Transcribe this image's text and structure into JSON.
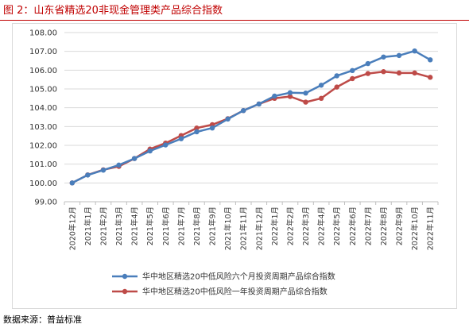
{
  "caption": "图 2：山东省精选20非现金管理类产品综合指数",
  "source": "数据来源：普益标准",
  "chart_data": {
    "type": "line",
    "categories": [
      "2020年12月",
      "2021年1月",
      "2021年2月",
      "2021年3月",
      "2021年4月",
      "2021年5月",
      "2021年6月",
      "2021年7月",
      "2021年8月",
      "2021年9月",
      "2021年10月",
      "2021年11月",
      "2021年12月",
      "2022年1月",
      "2022年2月",
      "2022年3月",
      "2022年4月",
      "2022年5月",
      "2022年6月",
      "2022年7月",
      "2022年8月",
      "2022年9月",
      "2022年10月",
      "2022年11月"
    ],
    "yticks": [
      "99.00",
      "100.00",
      "101.00",
      "102.00",
      "103.00",
      "104.00",
      "105.00",
      "106.00",
      "107.00",
      "108.00"
    ],
    "ylim": [
      99,
      108
    ],
    "series": [
      {
        "name": "华中地区精选20中低风险六个月投资周期产品综合指数",
        "color": "#4a7ebb",
        "values": [
          100.0,
          100.42,
          100.68,
          100.95,
          101.3,
          101.7,
          102.02,
          102.35,
          102.72,
          102.92,
          103.4,
          103.85,
          104.2,
          104.62,
          104.8,
          104.78,
          105.2,
          105.7,
          105.98,
          106.35,
          106.7,
          106.78,
          107.02,
          106.55
        ]
      },
      {
        "name": "华中地区精选20中低风险一年投资周期产品综合指数",
        "color": "#be4b48",
        "values": [
          100.0,
          100.43,
          100.7,
          100.88,
          101.3,
          101.8,
          102.12,
          102.52,
          102.92,
          103.1,
          103.42,
          103.85,
          104.2,
          104.5,
          104.6,
          104.3,
          104.5,
          105.1,
          105.55,
          105.82,
          105.92,
          105.85,
          105.85,
          105.62
        ]
      }
    ]
  }
}
